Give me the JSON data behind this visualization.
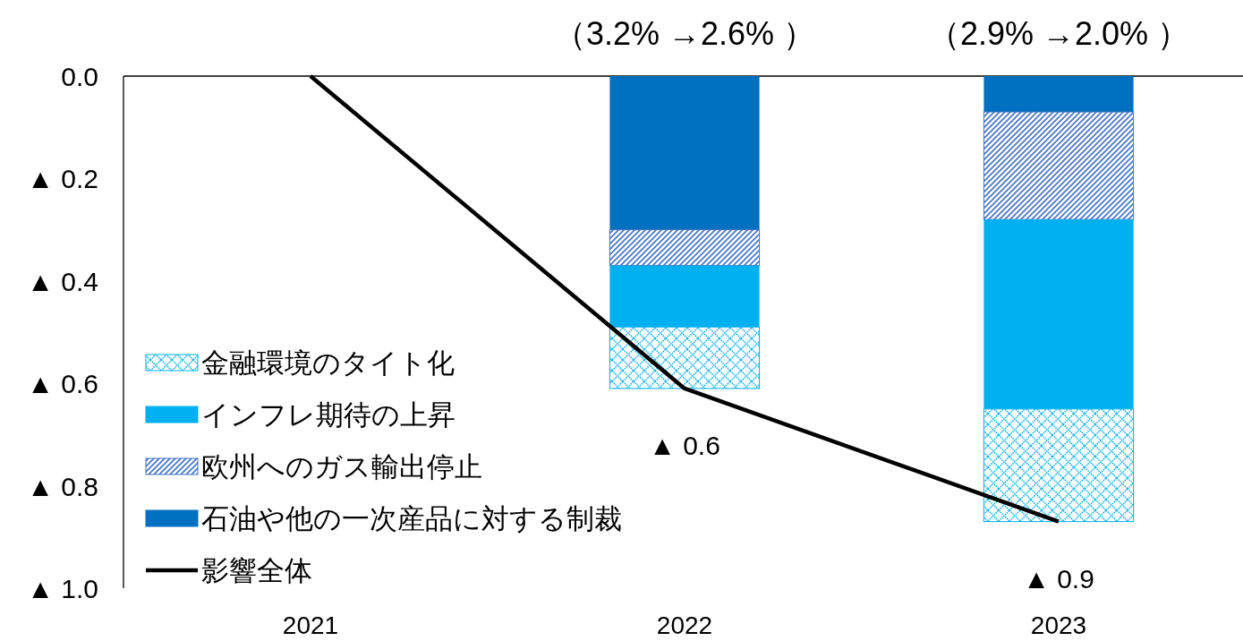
{
  "chart_data": {
    "type": "bar",
    "stacked": true,
    "categories": [
      "2021",
      "2022",
      "2023"
    ],
    "ylim": [
      -1,
      0
    ],
    "yticks": [
      {
        "value": 0,
        "label": "0.0"
      },
      {
        "value": -0.2,
        "label": "▲ 0.2"
      },
      {
        "value": -0.4,
        "label": "▲ 0.4"
      },
      {
        "value": -0.6,
        "label": "▲ 0.6"
      },
      {
        "value": -0.8,
        "label": "▲ 0.8"
      },
      {
        "value": -1,
        "label": "▲ 1.0"
      }
    ],
    "series": [
      {
        "name": "石油や他の一次産品に対する制裁",
        "color": "#0070c0",
        "values": [
          null,
          -0.3,
          -0.07
        ]
      },
      {
        "name": "欧州へのガス輸出停止",
        "color": "#4472c4",
        "values": [
          null,
          -0.07,
          -0.21
        ]
      },
      {
        "name": "インフレ期待の上昇",
        "color": "#00b0f0",
        "values": [
          null,
          -0.12,
          -0.37
        ]
      },
      {
        "name": "金融環境のタイト化",
        "color": "#00b0f0",
        "values": [
          null,
          -0.12,
          -0.22
        ]
      },
      {
        "name": "影響全体",
        "type": "line",
        "color": "#000000",
        "values": [
          0,
          -0.61,
          -0.87
        ]
      }
    ],
    "annotations": [
      "（3.2% →2.6% ）",
      "（2.9% →2.0% ）",
      {
        "text": "▲ 0.6",
        "x": "2022",
        "y": -0.61
      },
      {
        "text": "▲ 0.9",
        "x": "2023",
        "y": -0.87
      }
    ],
    "grid": false,
    "legend": "bottom left"
  }
}
